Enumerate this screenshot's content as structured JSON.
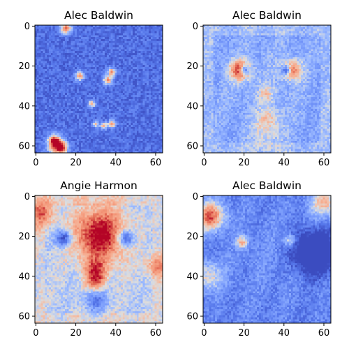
{
  "chart_data": [
    {
      "type": "heatmap",
      "title": "Alec Baldwin",
      "colormap": "coolwarm",
      "grid": false,
      "xlim": [
        0,
        63
      ],
      "ylim": [
        63,
        0
      ],
      "xticks": [
        0,
        20,
        40,
        60
      ],
      "yticks": [
        0,
        20,
        40,
        60
      ],
      "pattern": "noise",
      "hotspots": [
        {
          "x": 15,
          "y": 1,
          "r": 2.0,
          "v": 1.0
        },
        {
          "x": 22,
          "y": 25,
          "r": 1.5,
          "v": 0.9
        },
        {
          "x": 36,
          "y": 27,
          "r": 1.6,
          "v": 0.9
        },
        {
          "x": 38,
          "y": 23,
          "r": 1.4,
          "v": 0.9
        },
        {
          "x": 28,
          "y": 39,
          "r": 1.2,
          "v": 0.8
        },
        {
          "x": 30,
          "y": 49,
          "r": 1.0,
          "v": 0.7
        },
        {
          "x": 34,
          "y": 50,
          "r": 1.2,
          "v": 0.8
        },
        {
          "x": 38,
          "y": 49,
          "r": 1.3,
          "v": 0.9
        },
        {
          "x": 10,
          "y": 60,
          "r": 3.0,
          "v": 1.0
        },
        {
          "x": 9,
          "y": 57,
          "r": 1.8,
          "v": 0.9
        },
        {
          "x": 13,
          "y": 61,
          "r": 2.0,
          "v": 0.95
        }
      ]
    },
    {
      "type": "heatmap",
      "title": "Alec Baldwin",
      "colormap": "coolwarm",
      "grid": false,
      "xlim": [
        0,
        63
      ],
      "ylim": [
        63,
        0
      ],
      "xticks": [
        0,
        20,
        40,
        60
      ],
      "yticks": [
        0,
        20,
        40,
        60
      ],
      "pattern": "face",
      "base": -0.4,
      "hotspots": [
        {
          "x": 18,
          "y": 22,
          "r": 3.5,
          "v": 0.9
        },
        {
          "x": 44,
          "y": 22,
          "r": 3.5,
          "v": 0.7
        },
        {
          "x": 31,
          "y": 34,
          "r": 3.0,
          "v": 0.3
        },
        {
          "x": 32,
          "y": 46,
          "r": 4.0,
          "v": 0.35
        },
        {
          "x": 31,
          "y": 55,
          "r": 5.0,
          "v": 0.25
        }
      ],
      "coldspots": [
        {
          "x": 20,
          "y": 22,
          "r": 1.5,
          "v": -1.0
        },
        {
          "x": 41,
          "y": 22,
          "r": 1.5,
          "v": -0.9
        }
      ]
    },
    {
      "type": "heatmap",
      "title": "Angie Harmon",
      "colormap": "coolwarm",
      "grid": false,
      "xlim": [
        0,
        63
      ],
      "ylim": [
        63,
        0
      ],
      "xticks": [
        0,
        20,
        40,
        60
      ],
      "yticks": [
        0,
        20,
        40,
        60
      ],
      "pattern": "face",
      "base": -0.15,
      "hotspots": [
        {
          "x": 32,
          "y": 19,
          "r": 9.0,
          "v": 0.85
        },
        {
          "x": 30,
          "y": 37,
          "r": 4.0,
          "v": 0.55
        },
        {
          "x": 30,
          "y": 43,
          "r": 3.0,
          "v": 0.5
        },
        {
          "x": 3,
          "y": 8,
          "r": 5.0,
          "v": 0.5
        },
        {
          "x": 60,
          "y": 35,
          "r": 4.0,
          "v": 0.4
        }
      ],
      "coldspots": [
        {
          "x": 14,
          "y": 21,
          "r": 3.0,
          "v": -0.8
        },
        {
          "x": 45,
          "y": 21,
          "r": 3.0,
          "v": -0.8
        },
        {
          "x": 30,
          "y": 52,
          "r": 4.0,
          "v": -0.5
        }
      ]
    },
    {
      "type": "heatmap",
      "title": "Alec Baldwin",
      "colormap": "coolwarm",
      "grid": false,
      "xlim": [
        0,
        63
      ],
      "ylim": [
        63,
        0
      ],
      "xticks": [
        0,
        20,
        40,
        60
      ],
      "yticks": [
        0,
        20,
        40,
        60
      ],
      "pattern": "face",
      "base": -0.65,
      "hotspots": [
        {
          "x": 3,
          "y": 10,
          "r": 5.0,
          "v": 1.0
        },
        {
          "x": 2,
          "y": 40,
          "r": 5.0,
          "v": 0.5
        },
        {
          "x": 60,
          "y": 3,
          "r": 5.0,
          "v": 0.65
        },
        {
          "x": 19,
          "y": 23,
          "r": 2.0,
          "v": 0.7
        },
        {
          "x": 43,
          "y": 22,
          "r": 2.0,
          "v": 0.5
        }
      ],
      "coldspots": [
        {
          "x": 55,
          "y": 28,
          "r": 7.0,
          "v": -0.95
        }
      ]
    }
  ]
}
